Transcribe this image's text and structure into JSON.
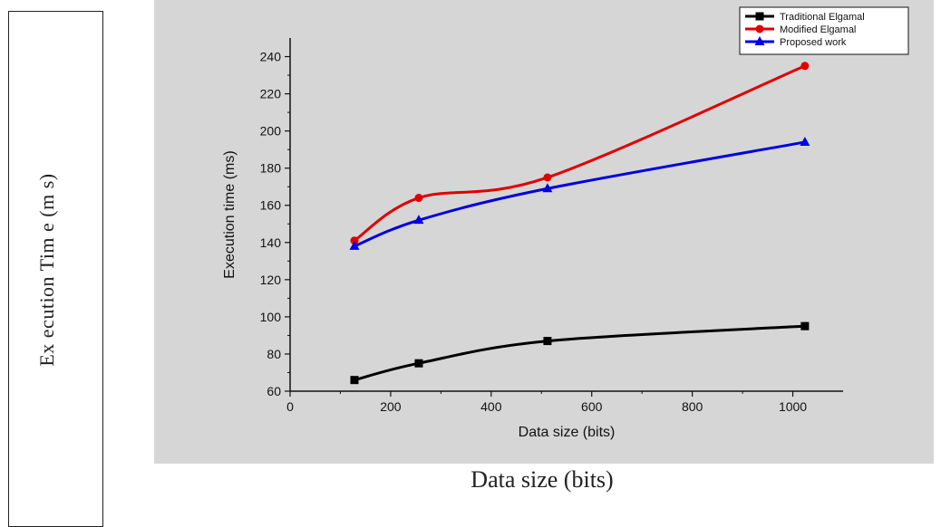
{
  "outer": {
    "ylabel": "Ex ecution Tim e (m s)",
    "xlabel": "Data size (bits)"
  },
  "chart_data": {
    "type": "line",
    "title": "",
    "xlabel": "Data size (bits)",
    "ylabel": "Execution time (ms)",
    "xlim": [
      0,
      1100
    ],
    "ylim": [
      60,
      250
    ],
    "xticks": [
      0,
      200,
      400,
      600,
      800,
      1000
    ],
    "yticks": [
      60,
      80,
      100,
      120,
      140,
      160,
      180,
      200,
      220,
      240
    ],
    "legend_position": "top-right",
    "grid": false,
    "x": [
      128,
      256,
      512,
      1024
    ],
    "series": [
      {
        "name": "Traditional Elgamal",
        "color": "#000000",
        "marker": "square",
        "values": [
          66,
          75,
          87,
          95
        ]
      },
      {
        "name": "Modified Elgamal",
        "color": "#e00000",
        "marker": "circle",
        "values": [
          141,
          164,
          175,
          235
        ]
      },
      {
        "name": "Proposed work",
        "color": "#0000e0",
        "marker": "triangle",
        "values": [
          138,
          152,
          169,
          194
        ]
      }
    ]
  }
}
